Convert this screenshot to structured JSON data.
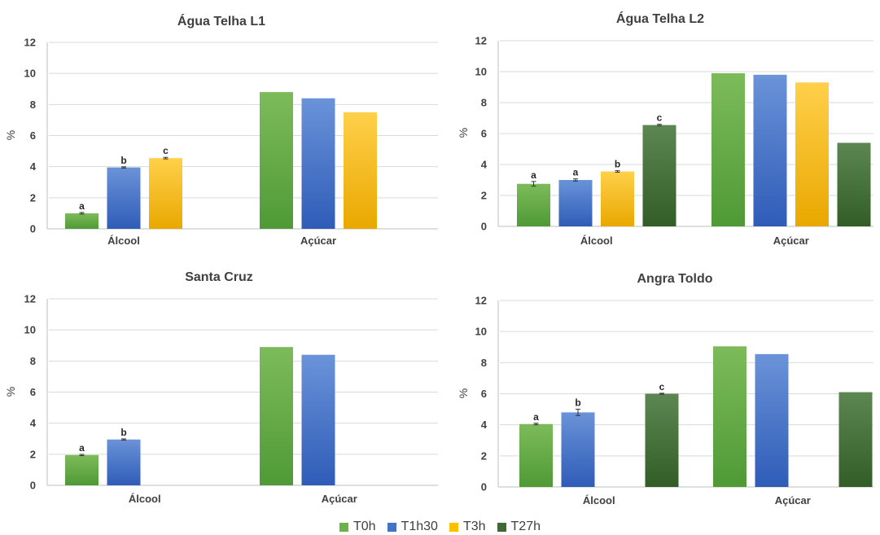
{
  "series_colors": {
    "T0h": [
      "#7dbb5a",
      "#4f9a36"
    ],
    "T1h30": [
      "#6a93d8",
      "#2f5cb8"
    ],
    "T3h": [
      "#ffd04a",
      "#e9a800"
    ],
    "T27h": [
      "#5d8752",
      "#325d26"
    ]
  },
  "legend": [
    {
      "name": "T0h",
      "color": "#6cb24a"
    },
    {
      "name": "T1h30",
      "color": "#4472c4"
    },
    {
      "name": "T3h",
      "color": "#ffc000"
    },
    {
      "name": "T27h",
      "color": "#3e6b34"
    }
  ],
  "chart_data": [
    {
      "type": "bar",
      "title": "Água Telha L1",
      "ylabel": "%",
      "ylim": [
        0,
        12
      ],
      "yticks": [
        0,
        2,
        4,
        6,
        8,
        10,
        12
      ],
      "grid": true,
      "categories": [
        "Álcool",
        "Açúcar"
      ],
      "series": [
        {
          "name": "T0h",
          "values": [
            1.0,
            8.8
          ],
          "errors": [
            0.05,
            null
          ],
          "labels": [
            "a",
            ""
          ]
        },
        {
          "name": "T1h30",
          "values": [
            3.95,
            8.4
          ],
          "errors": [
            0.04,
            null
          ],
          "labels": [
            "b",
            ""
          ]
        },
        {
          "name": "T3h",
          "values": [
            4.55,
            7.5
          ],
          "errors": [
            0.05,
            null
          ],
          "labels": [
            "c",
            ""
          ]
        }
      ]
    },
    {
      "type": "bar",
      "title": "Água Telha L2",
      "ylabel": "%",
      "ylim": [
        0,
        12
      ],
      "yticks": [
        0,
        2,
        4,
        6,
        8,
        10,
        12
      ],
      "grid": true,
      "categories": [
        "Álcool",
        "Açúcar"
      ],
      "series": [
        {
          "name": "T0h",
          "values": [
            2.75,
            9.9
          ],
          "errors": [
            0.15,
            null
          ],
          "labels": [
            "a",
            ""
          ]
        },
        {
          "name": "T1h30",
          "values": [
            3.0,
            9.8
          ],
          "errors": [
            0.07,
            null
          ],
          "labels": [
            "a",
            ""
          ]
        },
        {
          "name": "T3h",
          "values": [
            3.55,
            9.3
          ],
          "errors": [
            0.05,
            null
          ],
          "labels": [
            "b",
            ""
          ]
        },
        {
          "name": "T27h",
          "values": [
            6.55,
            5.4
          ],
          "errors": [
            0.05,
            null
          ],
          "labels": [
            "c",
            ""
          ]
        }
      ]
    },
    {
      "type": "bar",
      "title": "Santa Cruz",
      "ylabel": "%",
      "ylim": [
        0,
        12
      ],
      "yticks": [
        0,
        2,
        4,
        6,
        8,
        10,
        12
      ],
      "grid": true,
      "categories": [
        "Álcool",
        "Açúcar"
      ],
      "series": [
        {
          "name": "T0h",
          "values": [
            1.95,
            8.9
          ],
          "errors": [
            0.04,
            null
          ],
          "labels": [
            "a",
            ""
          ]
        },
        {
          "name": "T1h30",
          "values": [
            2.95,
            8.4
          ],
          "errors": [
            0.04,
            null
          ],
          "labels": [
            "b",
            ""
          ]
        },
        {
          "name": "T3h",
          "values": [
            null,
            null
          ],
          "errors": [
            null,
            null
          ],
          "labels": [
            "",
            ""
          ]
        },
        {
          "name": "T27h",
          "values": [
            null,
            null
          ],
          "errors": [
            null,
            null
          ],
          "labels": [
            "",
            ""
          ]
        }
      ]
    },
    {
      "type": "bar",
      "title": "Angra Toldo",
      "ylabel": "%",
      "ylim": [
        0,
        12
      ],
      "yticks": [
        0,
        2,
        4,
        6,
        8,
        10,
        12
      ],
      "grid": true,
      "categories": [
        "Álcool",
        "Açúcar"
      ],
      "series": [
        {
          "name": "T0h",
          "values": [
            4.05,
            9.05
          ],
          "errors": [
            0.05,
            null
          ],
          "labels": [
            "a",
            ""
          ]
        },
        {
          "name": "T1h30",
          "values": [
            4.8,
            8.55
          ],
          "errors": [
            0.2,
            null
          ],
          "labels": [
            "b",
            ""
          ]
        },
        {
          "name": "T3h",
          "values": [
            null,
            null
          ],
          "errors": [
            null,
            null
          ],
          "labels": [
            "",
            ""
          ]
        },
        {
          "name": "T27h",
          "values": [
            6.0,
            6.1
          ],
          "errors": [
            0.03,
            null
          ],
          "labels": [
            "c",
            ""
          ]
        }
      ]
    }
  ]
}
